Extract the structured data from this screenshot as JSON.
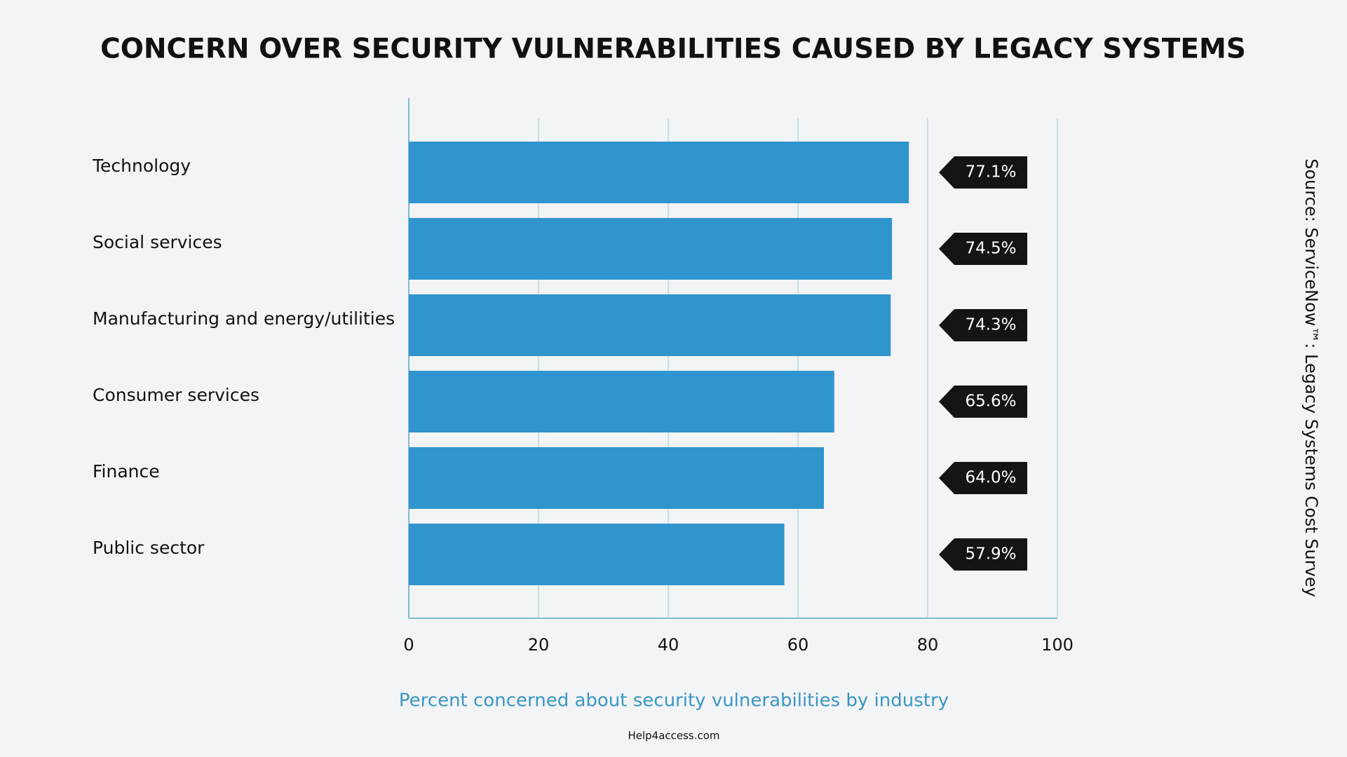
{
  "chart_data": {
    "type": "bar",
    "orientation": "horizontal",
    "title": "CONCERN OVER SECURITY VULNERABILITIES CAUSED BY LEGACY SYSTEMS",
    "categories": [
      "Technology",
      "Social services",
      "Manufacturing and energy/utilities",
      "Consumer services",
      "Finance",
      "Public sector"
    ],
    "values": [
      77.1,
      74.5,
      74.3,
      65.6,
      64.0,
      57.9
    ],
    "value_labels": [
      "77.1%",
      "74.5%",
      "74.3%",
      "65.6%",
      "64.0%",
      "57.9%"
    ],
    "color": "#3195cd",
    "xlim": [
      0,
      100
    ],
    "xticks": [
      0,
      20,
      40,
      60,
      80,
      100
    ],
    "grid": true,
    "xlabel": "Percent concerned about security vulnerabilities by industry",
    "source": "Source: ServiceNow™: Legacy Systems Cost Survey",
    "footer": "Help4access.com"
  }
}
